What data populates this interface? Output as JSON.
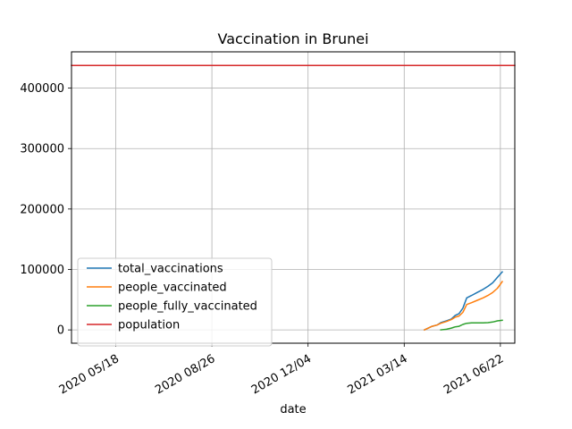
{
  "chart_data": {
    "type": "line",
    "title": "Vaccination in Brunei",
    "xlabel": "date",
    "ylabel": "",
    "x_axis": {
      "type": "date",
      "lim": [
        "2020-04-02",
        "2021-07-07"
      ],
      "ticks": [
        {
          "date": "2020-05-18",
          "label": "2020 05/18"
        },
        {
          "date": "2020-08-26",
          "label": "2020 08/26"
        },
        {
          "date": "2020-12-04",
          "label": "2020 12/04"
        },
        {
          "date": "2021-03-14",
          "label": "2021 03/14"
        },
        {
          "date": "2021-06-22",
          "label": "2021 06/22"
        }
      ]
    },
    "y_axis": {
      "lim": [
        -22000,
        460000
      ],
      "ticks": [
        {
          "value": 0,
          "label": "0"
        },
        {
          "value": 100000,
          "label": "100000"
        },
        {
          "value": 200000,
          "label": "200000"
        },
        {
          "value": 300000,
          "label": "300000"
        },
        {
          "value": 400000,
          "label": "400000"
        }
      ]
    },
    "grid": true,
    "legend_position": "lower-left",
    "series": [
      {
        "name": "total_vaccinations",
        "color": "#1f77b4",
        "points": [
          [
            "2021-04-04",
            0
          ],
          [
            "2021-04-08",
            3000
          ],
          [
            "2021-04-12",
            6000
          ],
          [
            "2021-04-17",
            8000
          ],
          [
            "2021-04-21",
            12000
          ],
          [
            "2021-04-27",
            15000
          ],
          [
            "2021-05-02",
            18000
          ],
          [
            "2021-05-06",
            24000
          ],
          [
            "2021-05-10",
            27000
          ],
          [
            "2021-05-14",
            36000
          ],
          [
            "2021-05-18",
            53000
          ],
          [
            "2021-05-23",
            57000
          ],
          [
            "2021-05-29",
            62000
          ],
          [
            "2021-06-04",
            67000
          ],
          [
            "2021-06-09",
            72000
          ],
          [
            "2021-06-14",
            78000
          ],
          [
            "2021-06-19",
            87000
          ],
          [
            "2021-06-24",
            96000
          ]
        ]
      },
      {
        "name": "people_vaccinated",
        "color": "#ff7f0e",
        "points": [
          [
            "2021-04-04",
            0
          ],
          [
            "2021-04-08",
            3000
          ],
          [
            "2021-04-12",
            6000
          ],
          [
            "2021-04-17",
            8000
          ],
          [
            "2021-04-21",
            11000
          ],
          [
            "2021-04-27",
            14000
          ],
          [
            "2021-05-02",
            17000
          ],
          [
            "2021-05-06",
            21000
          ],
          [
            "2021-05-10",
            23000
          ],
          [
            "2021-05-14",
            29000
          ],
          [
            "2021-05-18",
            42000
          ],
          [
            "2021-05-23",
            45000
          ],
          [
            "2021-05-29",
            49000
          ],
          [
            "2021-06-04",
            53000
          ],
          [
            "2021-06-09",
            57000
          ],
          [
            "2021-06-14",
            62000
          ],
          [
            "2021-06-19",
            69000
          ],
          [
            "2021-06-24",
            80000
          ]
        ]
      },
      {
        "name": "people_fully_vaccinated",
        "color": "#2ca02c",
        "points": [
          [
            "2021-04-21",
            0
          ],
          [
            "2021-04-27",
            1000
          ],
          [
            "2021-05-02",
            3000
          ],
          [
            "2021-05-06",
            5000
          ],
          [
            "2021-05-10",
            6000
          ],
          [
            "2021-05-14",
            9000
          ],
          [
            "2021-05-18",
            11000
          ],
          [
            "2021-05-23",
            11500
          ],
          [
            "2021-05-29",
            11500
          ],
          [
            "2021-06-04",
            11500
          ],
          [
            "2021-06-09",
            12000
          ],
          [
            "2021-06-14",
            13000
          ],
          [
            "2021-06-19",
            15000
          ],
          [
            "2021-06-24",
            16000
          ]
        ]
      },
      {
        "name": "population",
        "color": "#d62728",
        "points": [
          [
            "2020-04-02",
            437479
          ],
          [
            "2021-07-07",
            437479
          ]
        ]
      }
    ]
  }
}
